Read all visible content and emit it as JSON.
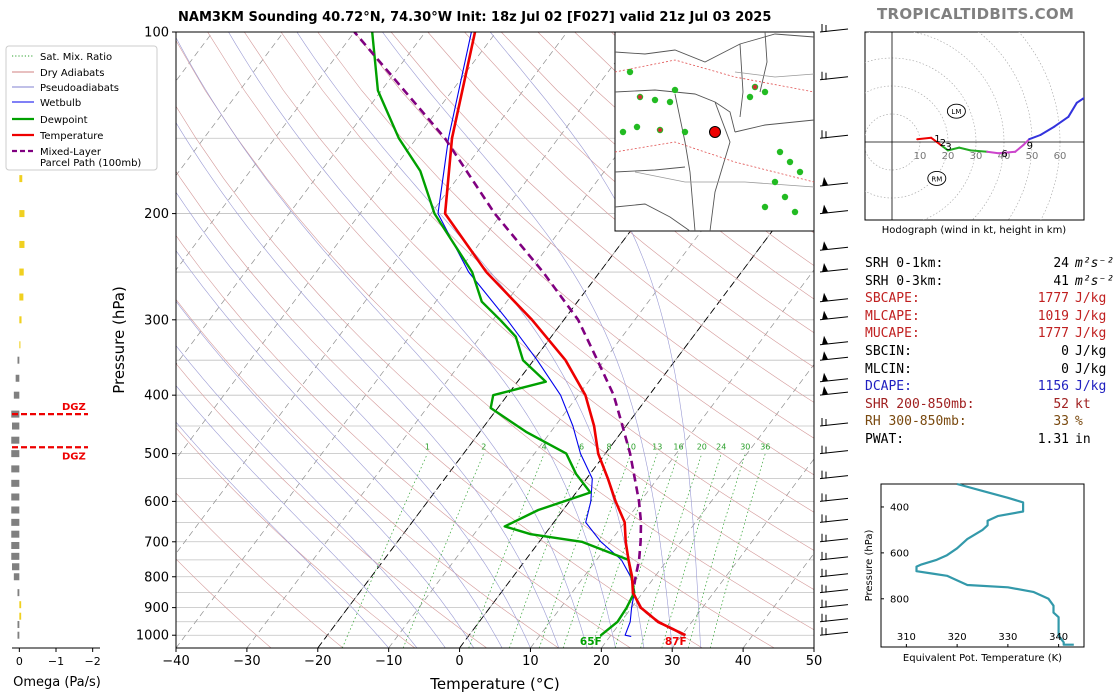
{
  "brand": "TROPICALTIDBITS.COM",
  "title": "NAM3KM Sounding 40.72°N, 74.30°W Init: 18z Jul 02 [F027] valid 21z Jul 03 2025",
  "legend": [
    {
      "label": "Sat. Mix. Ratio",
      "color": "#2ca02c",
      "style": "dotted"
    },
    {
      "label": "Dry Adiabats",
      "color": "#d08080",
      "style": "solid"
    },
    {
      "label": "Pseudoadiabats",
      "color": "#8080d0",
      "style": "solid"
    },
    {
      "label": "Wetbulb",
      "color": "#0000ee",
      "style": "solid"
    },
    {
      "label": "Dewpoint",
      "color": "#00a000",
      "style": "solid"
    },
    {
      "label": "Temperature",
      "color": "#ee0000",
      "style": "solid"
    },
    {
      "label": "Mixed-Layer\nParcel Path (100mb)",
      "color": "#800080",
      "style": "dashed"
    }
  ],
  "colors": {
    "temperature": "#ee0000",
    "dewpoint": "#00a000",
    "wetbulb": "#0000ee",
    "parcel": "#800080",
    "hodo": "#3333dd"
  },
  "chart_data": [
    {
      "type": "line",
      "name": "skewt",
      "xlabel": "Temperature (°C)",
      "ylabel": "Pressure (hPa)",
      "xlim": [
        -40,
        50
      ],
      "ylim": [
        1050,
        100
      ],
      "log_y": true,
      "x_ticks": [
        -40,
        -30,
        -20,
        -10,
        0,
        10,
        20,
        30,
        40,
        50
      ],
      "y_ticks": [
        100,
        200,
        300,
        400,
        500,
        600,
        700,
        800,
        900,
        1000
      ],
      "mixing_ratio_labels": [
        "1",
        "2",
        "4",
        "6",
        "8",
        "10",
        "13",
        "16",
        "20",
        "24",
        "30",
        "36"
      ],
      "mixing_ratio_values": [
        1,
        2,
        4,
        6,
        8,
        10,
        13,
        16,
        20,
        24,
        30,
        36
      ],
      "surface_temp_label": "87F",
      "surface_dewpoint_label": "65F",
      "temperature": [
        [
          1000,
          30.5
        ],
        [
          950,
          25.2
        ],
        [
          900,
          21.3
        ],
        [
          850,
          18.6
        ],
        [
          800,
          16.8
        ],
        [
          750,
          14.5
        ],
        [
          700,
          12.2
        ],
        [
          650,
          10.0
        ],
        [
          600,
          6.5
        ],
        [
          550,
          3.0
        ],
        [
          500,
          -1.0
        ],
        [
          450,
          -4.5
        ],
        [
          400,
          -9.0
        ],
        [
          350,
          -15.5
        ],
        [
          300,
          -24.5
        ],
        [
          250,
          -36.0
        ],
        [
          200,
          -48.0
        ],
        [
          150,
          -55.0
        ],
        [
          100,
          -63.0
        ]
      ],
      "dewpoint": [
        [
          1005,
          18.8
        ],
        [
          1000,
          18.6
        ],
        [
          950,
          19.5
        ],
        [
          900,
          19.3
        ],
        [
          850,
          18.8
        ],
        [
          800,
          16.7
        ],
        [
          750,
          14.5
        ],
        [
          700,
          6.0
        ],
        [
          680,
          -2.0
        ],
        [
          660,
          -6.5
        ],
        [
          620,
          -3.5
        ],
        [
          580,
          2.0
        ],
        [
          540,
          -2.0
        ],
        [
          500,
          -5.5
        ],
        [
          460,
          -13.5
        ],
        [
          420,
          -21.0
        ],
        [
          400,
          -22.0
        ],
        [
          380,
          -16.0
        ],
        [
          350,
          -21.5
        ],
        [
          320,
          -25.0
        ],
        [
          300,
          -29.0
        ],
        [
          280,
          -33.5
        ],
        [
          250,
          -38.0
        ],
        [
          200,
          -49.5
        ],
        [
          170,
          -56.0
        ],
        [
          150,
          -62.5
        ],
        [
          125,
          -70.5
        ],
        [
          100,
          -77.5
        ]
      ],
      "wetbulb": [
        [
          1005,
          23.0
        ],
        [
          1000,
          22.0
        ],
        [
          950,
          21.3
        ],
        [
          900,
          20.0
        ],
        [
          850,
          18.8
        ],
        [
          800,
          16.6
        ],
        [
          750,
          13.5
        ],
        [
          700,
          8.7
        ],
        [
          650,
          4.5
        ],
        [
          600,
          3.0
        ],
        [
          550,
          0.8
        ],
        [
          500,
          -3.5
        ],
        [
          450,
          -7.5
        ],
        [
          400,
          -12.5
        ],
        [
          350,
          -19.5
        ],
        [
          300,
          -28.0
        ],
        [
          250,
          -38.5
        ],
        [
          200,
          -49.0
        ],
        [
          150,
          -55.5
        ],
        [
          100,
          -63.5
        ]
      ],
      "parcel": [
        [
          1000,
          30.5
        ],
        [
          950,
          25.2
        ],
        [
          900,
          21.3
        ],
        [
          850,
          18.6
        ],
        [
          800,
          17.3
        ],
        [
          750,
          16.0
        ],
        [
          700,
          14.3
        ],
        [
          650,
          12.3
        ],
        [
          600,
          9.8
        ],
        [
          550,
          6.8
        ],
        [
          500,
          3.5
        ],
        [
          450,
          -0.5
        ],
        [
          400,
          -5.0
        ],
        [
          350,
          -11.0
        ],
        [
          300,
          -18.0
        ],
        [
          250,
          -28.0
        ],
        [
          200,
          -41.0
        ],
        [
          150,
          -56.0
        ],
        [
          100,
          -80.0
        ]
      ],
      "barb_pressures": [
        100,
        120,
        150,
        180,
        200,
        230,
        250,
        280,
        300,
        330,
        350,
        380,
        400,
        450,
        500,
        550,
        600,
        650,
        700,
        750,
        800,
        850,
        900,
        950,
        1000
      ]
    },
    {
      "type": "bar",
      "name": "omega",
      "xlabel": "Omega (Pa/s)",
      "x_ticks": [
        0,
        -1,
        -2
      ],
      "xlim": [
        0.2,
        -2.2
      ],
      "dgz_label": "DGZ",
      "dgz_pressures": [
        430,
        488
      ],
      "levels": [
        [
          120,
          -0.05
        ],
        [
          175,
          -0.08
        ],
        [
          200,
          -0.14
        ],
        [
          225,
          -0.14
        ],
        [
          250,
          -0.12
        ],
        [
          275,
          -0.11
        ],
        [
          300,
          -0.06
        ],
        [
          330,
          -0.03
        ],
        [
          350,
          0.05
        ],
        [
          375,
          0.1
        ],
        [
          400,
          0.15
        ],
        [
          430,
          0.22
        ],
        [
          450,
          0.2
        ],
        [
          475,
          0.22
        ],
        [
          500,
          0.22
        ],
        [
          530,
          0.22
        ],
        [
          560,
          0.22
        ],
        [
          590,
          0.22
        ],
        [
          620,
          0.22
        ],
        [
          650,
          0.22
        ],
        [
          680,
          0.22
        ],
        [
          710,
          0.22
        ],
        [
          740,
          0.22
        ],
        [
          770,
          0.2
        ],
        [
          800,
          0.15
        ],
        [
          850,
          0.05
        ],
        [
          890,
          -0.05
        ],
        [
          930,
          -0.05
        ],
        [
          960,
          0.05
        ],
        [
          1000,
          0.05
        ]
      ]
    },
    {
      "type": "line",
      "name": "hodograph",
      "xlabel": "Hodograph (wind in kt, height in km)",
      "ring_labels": [
        "10",
        "20",
        "30",
        "40",
        "50",
        "60"
      ],
      "ring_values": [
        10,
        20,
        30,
        40,
        50,
        60
      ],
      "height_labels": [
        "1",
        "2",
        "3",
        "6",
        "9"
      ],
      "storm_labels": [
        "LM",
        "RM"
      ],
      "lm": [
        23,
        11
      ],
      "rm": [
        16,
        -13
      ],
      "points": [
        [
          9,
          1
        ],
        [
          14,
          1.5
        ],
        [
          16,
          0
        ],
        [
          18,
          -1.5
        ],
        [
          20,
          -3
        ],
        [
          24,
          -2
        ],
        [
          28,
          -3
        ],
        [
          34,
          -3.5
        ],
        [
          38,
          -4
        ],
        [
          44,
          -3.5
        ],
        [
          47,
          -1
        ],
        [
          49,
          1
        ],
        [
          53,
          2.5
        ],
        [
          58,
          5.5
        ],
        [
          63,
          9
        ],
        [
          66,
          14
        ],
        [
          69,
          16
        ]
      ],
      "height_marks": [
        [
          14,
          1.5
        ],
        [
          16,
          0
        ],
        [
          18,
          -1.5
        ],
        [
          38,
          -4
        ],
        [
          47,
          -1
        ]
      ]
    },
    {
      "type": "line",
      "name": "theta_e",
      "xlabel": "Equivalent Pot. Temperature (K)",
      "ylabel": "Pressure (hPa)",
      "x_ticks": [
        310,
        320,
        330,
        340
      ],
      "y_ticks": [
        400,
        600,
        800
      ],
      "xlim": [
        305,
        345
      ],
      "ylim": [
        1010,
        300
      ],
      "points": [
        [
          320,
          300
        ],
        [
          325,
          330
        ],
        [
          330,
          360
        ],
        [
          333,
          380
        ],
        [
          333,
          420
        ],
        [
          328,
          440
        ],
        [
          326,
          460
        ],
        [
          326,
          480
        ],
        [
          325,
          500
        ],
        [
          322,
          540
        ],
        [
          320,
          580
        ],
        [
          318,
          610
        ],
        [
          316,
          630
        ],
        [
          313,
          650
        ],
        [
          312,
          660
        ],
        [
          312,
          680
        ],
        [
          315,
          690
        ],
        [
          318,
          700
        ],
        [
          320,
          720
        ],
        [
          322,
          740
        ],
        [
          330,
          750
        ],
        [
          335,
          770
        ],
        [
          338,
          800
        ],
        [
          339,
          830
        ],
        [
          339,
          860
        ],
        [
          340,
          880
        ],
        [
          340,
          900
        ],
        [
          340,
          960
        ],
        [
          341,
          990
        ],
        [
          341,
          1000
        ],
        [
          343,
          1000
        ]
      ]
    }
  ],
  "stats": [
    {
      "label": "SRH 0-1km:",
      "value": "24",
      "unit": "m²s⁻²",
      "color": "#000000"
    },
    {
      "label": "SRH 0-3km:",
      "value": "41",
      "unit": "m²s⁻²",
      "color": "#000000"
    },
    {
      "label": "SBCAPE:",
      "value": "1777",
      "unit": "J/kg",
      "color": "#c02020"
    },
    {
      "label": "MLCAPE:",
      "value": "1019",
      "unit": "J/kg",
      "color": "#c02020"
    },
    {
      "label": "MUCAPE:",
      "value": "1777",
      "unit": "J/kg",
      "color": "#c02020"
    },
    {
      "label": "SBCIN:",
      "value": "0",
      "unit": "J/kg",
      "color": "#000000"
    },
    {
      "label": "MLCIN:",
      "value": "0",
      "unit": "J/kg",
      "color": "#000000"
    },
    {
      "label": "DCAPE:",
      "value": "1156",
      "unit": "J/kg",
      "color": "#2020c0"
    },
    {
      "label": "SHR 200-850mb:",
      "value": "52",
      "unit": "kt",
      "color": "#a02020"
    },
    {
      "label": "RH 300-850mb:",
      "value": "33",
      "unit": "%",
      "color": "#7a4a10"
    },
    {
      "label": "PWAT:",
      "value": "1.31",
      "unit": "in",
      "color": "#000000"
    }
  ]
}
